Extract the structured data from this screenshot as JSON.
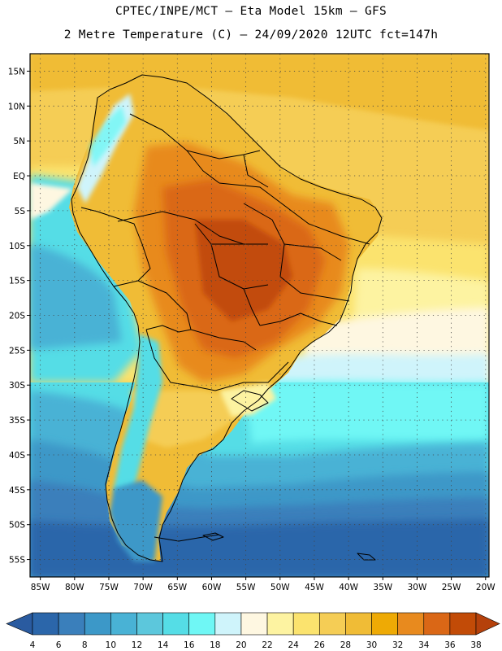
{
  "header": {
    "title_line1": "CPTEC/INPE/MCT –  Eta Model 15km – GFS",
    "title_line2": "2 Metre Temperature (C) – 24/09/2020 12UTC fct=147h"
  },
  "map": {
    "lat_labels": [
      "15N",
      "10N",
      "5N",
      "EQ",
      "5S",
      "10S",
      "15S",
      "20S",
      "25S",
      "30S",
      "35S",
      "40S",
      "45S",
      "50S",
      "55S"
    ],
    "lat_values": [
      15,
      10,
      5,
      0,
      -5,
      -10,
      -15,
      -20,
      -25,
      -30,
      -35,
      -40,
      -45,
      -50,
      -55
    ],
    "lon_labels": [
      "85W",
      "80W",
      "75W",
      "70W",
      "65W",
      "60W",
      "55W",
      "50W",
      "45W",
      "40W",
      "35W",
      "30W",
      "25W",
      "20W"
    ],
    "lon_values": [
      -85,
      -80,
      -75,
      -70,
      -65,
      -60,
      -55,
      -50,
      -45,
      -40,
      -35,
      -30,
      -25,
      -20
    ],
    "lat_range": [
      -57.5,
      17.5
    ],
    "lon_range": [
      -86.5,
      -19.5
    ]
  },
  "colorbar": {
    "labels": [
      "4",
      "6",
      "8",
      "10",
      "12",
      "14",
      "16",
      "18",
      "20",
      "22",
      "24",
      "26",
      "28",
      "30",
      "32",
      "34",
      "36",
      "38"
    ],
    "colors": [
      "#2b66aa",
      "#3a7fbb",
      "#3c98c8",
      "#49b2d5",
      "#5cc7dc",
      "#55dde6",
      "#6ff7f5",
      "#cff4fb",
      "#fef7e1",
      "#fdf3a1",
      "#fbe36e",
      "#f5cd55",
      "#f0bc36",
      "#eeaa05",
      "#e88a1e",
      "#da6716",
      "#c24b07"
    ],
    "low_color": "#2a5ba0",
    "high_color": "#b5410b"
  }
}
